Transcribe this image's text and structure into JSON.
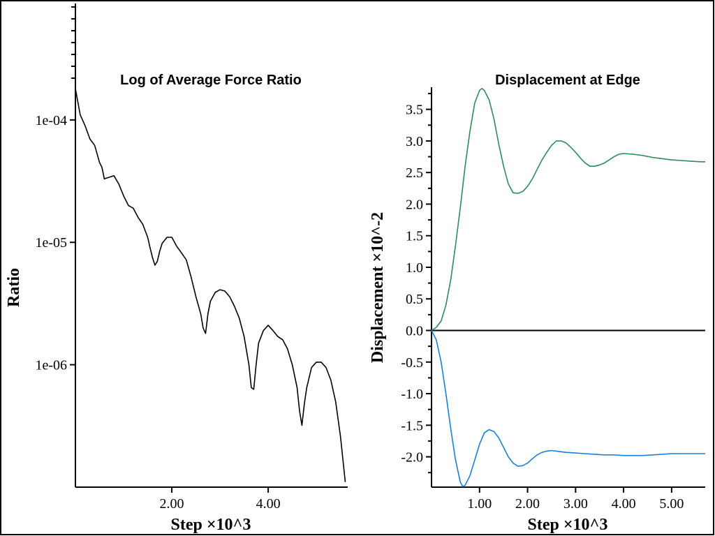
{
  "chart_data": [
    {
      "type": "line",
      "title": "Log of Average Force Ratio",
      "xlabel": "Step ×10^3",
      "ylabel": "Ratio",
      "y_scale": "log",
      "xlim": [
        0,
        5.65
      ],
      "ylim": [
        1e-07,
        0.000185
      ],
      "x_ticks": [
        2.0,
        4.0
      ],
      "x_tick_labels": [
        "2.00",
        "4.00"
      ],
      "y_ticks": [
        0.0001,
        1e-05,
        1e-06
      ],
      "y_tick_labels": [
        "1e-04",
        "1e-05",
        "1e-06"
      ],
      "grid": false,
      "series": [
        {
          "color": "#000000",
          "x": [
            0.0,
            0.1,
            0.2,
            0.3,
            0.4,
            0.5,
            0.55,
            0.6,
            0.7,
            0.8,
            0.9,
            1.0,
            1.1,
            1.2,
            1.3,
            1.4,
            1.5,
            1.55,
            1.6,
            1.65,
            1.7,
            1.75,
            1.8,
            1.9,
            2.0,
            2.1,
            2.2,
            2.3,
            2.4,
            2.5,
            2.6,
            2.65,
            2.7,
            2.75,
            2.8,
            2.9,
            3.0,
            3.1,
            3.2,
            3.3,
            3.4,
            3.5,
            3.6,
            3.65,
            3.7,
            3.75,
            3.8,
            3.9,
            4.0,
            4.1,
            4.2,
            4.3,
            4.4,
            4.5,
            4.6,
            4.65,
            4.7,
            4.75,
            4.8,
            4.9,
            5.0,
            5.1,
            5.2,
            5.3,
            5.4,
            5.5,
            5.6
          ],
          "y": [
            0.00018,
            0.00011,
            9e-05,
            7e-05,
            6.2e-05,
            4.5e-05,
            4.1e-05,
            3.3e-05,
            3.4e-05,
            3.5e-05,
            3e-05,
            2.4e-05,
            2e-05,
            1.9e-05,
            1.6e-05,
            1.4e-05,
            1.1e-05,
            9e-06,
            7.5e-06,
            6.5e-06,
            7e-06,
            8.5e-06,
            9.8e-06,
            1.1e-05,
            1.1e-05,
            9.3e-06,
            8.2e-06,
            7.2e-06,
            5.2e-06,
            3.6e-06,
            2.6e-06,
            2e-06,
            1.8e-06,
            2.6e-06,
            3.3e-06,
            3.9e-06,
            4.1e-06,
            4e-06,
            3.6e-06,
            3e-06,
            2.4e-06,
            1.7e-06,
            1e-06,
            6.5e-07,
            6.3e-07,
            1e-06,
            1.5e-06,
            1.9e-06,
            2.1e-06,
            1.9e-06,
            1.7e-06,
            1.6e-06,
            1.35e-06,
            1e-06,
            6.5e-07,
            4.2e-07,
            3.2e-07,
            4.8e-07,
            6.5e-07,
            9.5e-07,
            1.05e-06,
            1.05e-06,
            9.5e-07,
            7.5e-07,
            5e-07,
            2.6e-07,
            1.1e-07
          ]
        }
      ]
    },
    {
      "type": "line",
      "title": "Displacement at Edge",
      "xlabel": "Step ×10^3",
      "ylabel": "Displacement ×10^-2",
      "xlim": [
        0,
        5.7
      ],
      "ylim": [
        -2.48,
        3.85
      ],
      "x_ticks": [
        1.0,
        2.0,
        3.0,
        4.0,
        5.0
      ],
      "x_tick_labels": [
        "1.00",
        "2.00",
        "3.00",
        "4.00",
        "5.00"
      ],
      "y_ticks": [
        3.5,
        3.0,
        2.5,
        2.0,
        1.5,
        1.0,
        0.5,
        0.0,
        -0.5,
        -1.0,
        -1.5,
        -2.0
      ],
      "y_tick_labels": [
        "3.5",
        "3.0",
        "2.5",
        "2.0",
        "1.5",
        "1.0",
        "0.5",
        "0.0",
        "-0.5",
        "-1.0",
        "-1.5",
        "-2.0"
      ],
      "zero_line": true,
      "grid": false,
      "series": [
        {
          "color": "#2e8b57",
          "x": [
            0.0,
            0.1,
            0.2,
            0.3,
            0.4,
            0.5,
            0.6,
            0.7,
            0.8,
            0.9,
            1.0,
            1.05,
            1.1,
            1.2,
            1.3,
            1.4,
            1.5,
            1.6,
            1.7,
            1.8,
            1.9,
            2.0,
            2.1,
            2.2,
            2.3,
            2.4,
            2.5,
            2.6,
            2.7,
            2.8,
            2.9,
            3.0,
            3.1,
            3.2,
            3.3,
            3.4,
            3.5,
            3.6,
            3.7,
            3.8,
            3.9,
            4.0,
            4.2,
            4.4,
            4.6,
            4.8,
            5.0,
            5.2,
            5.4,
            5.6,
            5.7
          ],
          "y": [
            0.0,
            0.05,
            0.15,
            0.4,
            0.8,
            1.35,
            1.95,
            2.6,
            3.15,
            3.6,
            3.8,
            3.83,
            3.8,
            3.65,
            3.35,
            2.95,
            2.6,
            2.32,
            2.18,
            2.17,
            2.2,
            2.28,
            2.4,
            2.55,
            2.7,
            2.82,
            2.93,
            3.0,
            3.0,
            2.97,
            2.9,
            2.82,
            2.73,
            2.65,
            2.6,
            2.6,
            2.62,
            2.65,
            2.7,
            2.75,
            2.79,
            2.8,
            2.79,
            2.77,
            2.74,
            2.72,
            2.7,
            2.69,
            2.68,
            2.67,
            2.67
          ]
        },
        {
          "color": "#1a7fd9",
          "x": [
            0.0,
            0.1,
            0.2,
            0.3,
            0.4,
            0.5,
            0.6,
            0.65,
            0.7,
            0.8,
            0.9,
            1.0,
            1.1,
            1.2,
            1.3,
            1.4,
            1.5,
            1.6,
            1.7,
            1.8,
            1.9,
            2.0,
            2.1,
            2.2,
            2.3,
            2.4,
            2.5,
            2.6,
            2.7,
            2.8,
            3.0,
            3.2,
            3.4,
            3.6,
            3.8,
            4.0,
            4.2,
            4.4,
            4.6,
            4.8,
            5.0,
            5.2,
            5.4,
            5.6,
            5.7
          ],
          "y": [
            0.0,
            -0.15,
            -0.5,
            -1.0,
            -1.55,
            -2.05,
            -2.4,
            -2.47,
            -2.45,
            -2.3,
            -2.05,
            -1.8,
            -1.62,
            -1.57,
            -1.6,
            -1.7,
            -1.85,
            -2.0,
            -2.1,
            -2.15,
            -2.14,
            -2.1,
            -2.03,
            -1.97,
            -1.93,
            -1.91,
            -1.9,
            -1.91,
            -1.92,
            -1.93,
            -1.94,
            -1.95,
            -1.96,
            -1.97,
            -1.97,
            -1.98,
            -1.98,
            -1.98,
            -1.97,
            -1.96,
            -1.95,
            -1.95,
            -1.95,
            -1.95,
            -1.95
          ]
        }
      ]
    }
  ]
}
